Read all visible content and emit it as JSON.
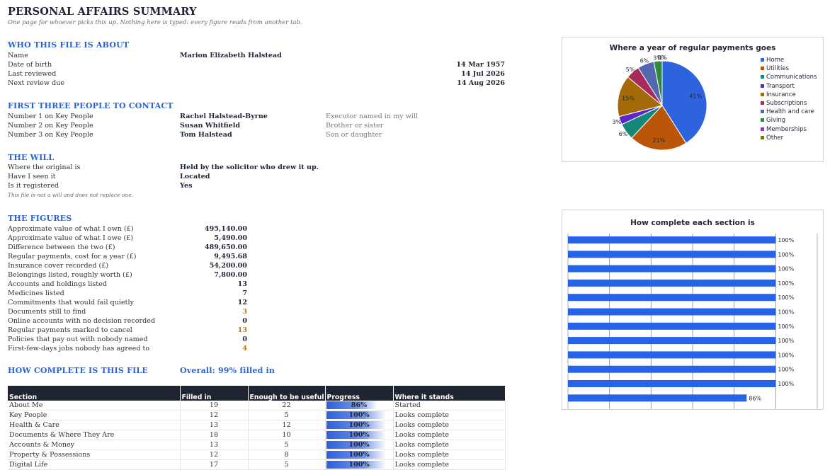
{
  "header": {
    "title": "PERSONAL AFFAIRS SUMMARY",
    "subtitle": "One page for whoever picks this up. Nothing here is typed: every figure reads from another tab."
  },
  "about": {
    "heading": "WHO THIS FILE IS ABOUT",
    "name_label": "Name",
    "name_value": "Marion Elizabeth Halstead",
    "dob_label": "Date of birth",
    "dob_value": "14 Mar 1957",
    "reviewed_label": "Last reviewed",
    "reviewed_value": "14 Jul 2026",
    "next_label": "Next review due",
    "next_value": "14 Aug 2026"
  },
  "contacts": {
    "heading": "FIRST THREE PEOPLE TO CONTACT",
    "rows": [
      {
        "label": "Number 1 on Key People",
        "name": "Rachel Halstead-Byrne",
        "role": "Executor named in my will"
      },
      {
        "label": "Number 2 on Key People",
        "name": "Susan Whitfield",
        "role": "Brother or sister"
      },
      {
        "label": "Number 3 on Key People",
        "name": "Tom Halstead",
        "role": "Son or daughter"
      }
    ]
  },
  "will": {
    "heading": "THE WILL",
    "rows": [
      {
        "label": "Where the original is",
        "value": "Held by the solicitor who drew it up."
      },
      {
        "label": "Have I seen it",
        "value": "Located"
      },
      {
        "label": "Is it registered",
        "value": "Yes"
      }
    ],
    "disclaimer": "This file is not a will and does not replace one."
  },
  "figures": {
    "heading": "THE FIGURES",
    "rows": [
      {
        "label": "Approximate value of what I own (£)",
        "value": "495,140.00",
        "warn": false
      },
      {
        "label": "Approximate value of what I owe (£)",
        "value": "5,490.00",
        "warn": false
      },
      {
        "label": "Difference between the two (£)",
        "value": "489,650.00",
        "warn": false
      },
      {
        "label": "Regular payments, cost for a year (£)",
        "value": "9,495.68",
        "warn": false
      },
      {
        "label": "Insurance cover recorded (£)",
        "value": "54,200.00",
        "warn": false
      },
      {
        "label": "Belongings listed, roughly worth (£)",
        "value": "7,800.00",
        "warn": false
      },
      {
        "label": "Accounts and holdings listed",
        "value": "13",
        "warn": false
      },
      {
        "label": "Medicines listed",
        "value": "7",
        "warn": false
      },
      {
        "label": "Commitments that would fail quietly",
        "value": "12",
        "warn": false
      },
      {
        "label": "Documents still to find",
        "value": "3",
        "warn": true
      },
      {
        "label": "Online accounts with no decision recorded",
        "value": "0",
        "warn": false
      },
      {
        "label": "Regular payments marked to cancel",
        "value": "13",
        "warn": true
      },
      {
        "label": "Policies that pay out with nobody named",
        "value": "0",
        "warn": false
      },
      {
        "label": "First-few-days jobs nobody has agreed to",
        "value": "4",
        "warn": true
      }
    ]
  },
  "completeness": {
    "heading": "HOW COMPLETE IS THIS FILE",
    "overall": "Overall: 99% filled in",
    "columns": [
      "Section",
      "Filled in",
      "Enough to be useful",
      "Progress",
      "Where it stands"
    ],
    "rows": [
      {
        "section": "About Me",
        "filled": "19",
        "enough": "22",
        "progress": "86%",
        "pct": 0.86,
        "status": "Started",
        "ok": false
      },
      {
        "section": "Key People",
        "filled": "12",
        "enough": "5",
        "progress": "100%",
        "pct": 1,
        "status": "Looks complete",
        "ok": true
      },
      {
        "section": "Health & Care",
        "filled": "13",
        "enough": "12",
        "progress": "100%",
        "pct": 1,
        "status": "Looks complete",
        "ok": true
      },
      {
        "section": "Documents & Where They Are",
        "filled": "18",
        "enough": "10",
        "progress": "100%",
        "pct": 1,
        "status": "Looks complete",
        "ok": true
      },
      {
        "section": "Accounts & Money",
        "filled": "13",
        "enough": "5",
        "progress": "100%",
        "pct": 1,
        "status": "Looks complete",
        "ok": true
      },
      {
        "section": "Property & Possessions",
        "filled": "12",
        "enough": "8",
        "progress": "100%",
        "pct": 1,
        "status": "Looks complete",
        "ok": true
      },
      {
        "section": "Digital Life",
        "filled": "17",
        "enough": "5",
        "progress": "100%",
        "pct": 1,
        "status": "Looks complete",
        "ok": true
      }
    ]
  },
  "chart_data": [
    {
      "type": "pie",
      "title": "Where a year of regular payments goes",
      "categories": [
        "Home",
        "Utilities",
        "Communications",
        "Transport",
        "Insurance",
        "Subscriptions",
        "Health and care",
        "Giving",
        "Memberships",
        "Other"
      ],
      "values": [
        41,
        21,
        6,
        3,
        15,
        5,
        6,
        3,
        0,
        0
      ],
      "labels": [
        "41%",
        "21%",
        "6%",
        "3%",
        "15%",
        "5%",
        "6%",
        "3%",
        "0%",
        "0%"
      ],
      "colors": [
        "#2e63e0",
        "#bb5608",
        "#17877a",
        "#5a28c8",
        "#a56a08",
        "#a82a5a",
        "#5468b0",
        "#2f8a40",
        "#8a3ab8",
        "#6e7a20"
      ],
      "legend": "right"
    },
    {
      "type": "bar",
      "orientation": "horizontal",
      "title": "How complete each section is",
      "values": [
        100,
        100,
        100,
        100,
        100,
        100,
        100,
        100,
        100,
        100,
        100,
        86
      ],
      "labels": [
        "100%",
        "100%",
        "100%",
        "100%",
        "100%",
        "100%",
        "100%",
        "100%",
        "100%",
        "100%",
        "100%",
        "86%"
      ],
      "xlim": [
        0,
        120
      ],
      "color": "#2563eb"
    }
  ]
}
